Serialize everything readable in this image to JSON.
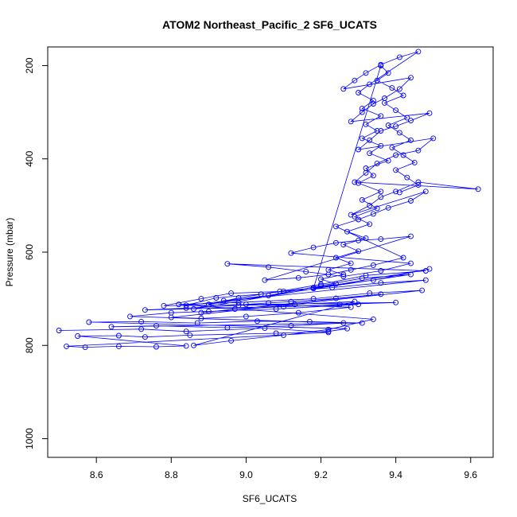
{
  "chart_data": {
    "type": "line",
    "title": "ATOM2 Northeast_Pacific_2 SF6_UCATS",
    "xlabel": "SF6_UCATS",
    "ylabel": "Pressure (mbar)",
    "xlim": [
      8.47,
      9.66
    ],
    "ylim": [
      1040,
      160
    ],
    "y_reversed": true,
    "x_ticks": [
      8.6,
      8.8,
      9.0,
      9.2,
      9.4,
      9.6
    ],
    "x_tick_labels": [
      "8.6",
      "8.8",
      "9.0",
      "9.2",
      "9.4",
      "9.6"
    ],
    "y_ticks": [
      200,
      400,
      600,
      800,
      1000
    ],
    "y_tick_labels": [
      "200",
      "400",
      "600",
      "800",
      "1000"
    ],
    "grid": false,
    "legend": "none",
    "series": [
      {
        "color": "#0000ff",
        "marker": "open-circle",
        "points": [
          [
            8.5,
            768
          ],
          [
            8.72,
            765
          ],
          [
            8.84,
            770
          ],
          [
            9.05,
            763
          ],
          [
            9.22,
            772
          ],
          [
            8.52,
            802
          ],
          [
            8.57,
            804
          ],
          [
            8.66,
            802
          ],
          [
            8.76,
            803
          ],
          [
            8.84,
            801
          ],
          [
            8.55,
            780
          ],
          [
            8.66,
            779
          ],
          [
            8.73,
            782
          ],
          [
            8.85,
            778
          ],
          [
            9.08,
            774
          ],
          [
            9.22,
            770
          ],
          [
            9.27,
            764
          ],
          [
            8.58,
            750
          ],
          [
            8.72,
            749
          ],
          [
            8.87,
            752
          ],
          [
            9.03,
            748
          ],
          [
            9.17,
            749
          ],
          [
            9.31,
            752
          ],
          [
            8.64,
            760
          ],
          [
            8.76,
            758
          ],
          [
            8.95,
            762
          ],
          [
            9.12,
            758
          ],
          [
            9.26,
            752
          ],
          [
            8.69,
            738
          ],
          [
            8.8,
            730
          ],
          [
            8.9,
            727
          ],
          [
            9.08,
            722
          ],
          [
            9.3,
            712
          ],
          [
            8.73,
            724
          ],
          [
            8.84,
            720
          ],
          [
            8.98,
            714
          ],
          [
            9.13,
            712
          ],
          [
            9.29,
            706
          ],
          [
            8.86,
            800
          ],
          [
            8.96,
            790
          ],
          [
            9.1,
            778
          ],
          [
            9.22,
            766
          ],
          [
            9.34,
            744
          ],
          [
            8.82,
            712
          ],
          [
            8.98,
            708
          ],
          [
            9.18,
            700
          ],
          [
            9.33,
            688
          ],
          [
            9.47,
            682
          ],
          [
            8.8,
            740
          ],
          [
            8.88,
            742
          ],
          [
            9.0,
            738
          ],
          [
            9.14,
            730
          ],
          [
            9.28,
            718
          ],
          [
            9.0,
            712
          ],
          [
            9.06,
            709
          ],
          [
            9.12,
            706
          ],
          [
            9.24,
            699
          ],
          [
            9.36,
            690
          ],
          [
            8.88,
            730
          ],
          [
            8.97,
            722
          ],
          [
            9.1,
            717
          ],
          [
            9.25,
            712
          ],
          [
            9.4,
            708
          ],
          [
            8.78,
            715
          ],
          [
            8.88,
            700
          ],
          [
            8.96,
            688
          ],
          [
            9.1,
            684
          ],
          [
            9.23,
            676
          ],
          [
            9.36,
            666
          ],
          [
            9.48,
            660
          ],
          [
            8.84,
            714
          ],
          [
            8.92,
            698
          ],
          [
            9.04,
            690
          ],
          [
            9.18,
            676
          ],
          [
            9.34,
            660
          ],
          [
            9.49,
            636
          ],
          [
            8.86,
            722
          ],
          [
            8.94,
            704
          ],
          [
            9.06,
            693
          ],
          [
            9.2,
            672
          ],
          [
            9.31,
            656
          ],
          [
            9.44,
            648
          ],
          [
            8.9,
            712
          ],
          [
            8.98,
            698
          ],
          [
            9.09,
            684
          ],
          [
            9.2,
            669
          ],
          [
            9.32,
            650
          ],
          [
            9.48,
            640
          ],
          [
            8.95,
            625
          ],
          [
            9.06,
            632
          ],
          [
            9.16,
            642
          ],
          [
            9.26,
            652
          ],
          [
            9.36,
            640
          ],
          [
            9.44,
            624
          ],
          [
            9.12,
            602
          ],
          [
            9.18,
            590
          ],
          [
            9.24,
            580
          ],
          [
            9.3,
            575
          ],
          [
            9.36,
            572
          ],
          [
            9.44,
            566
          ],
          [
            9.05,
            660
          ],
          [
            9.14,
            655
          ],
          [
            9.22,
            648
          ],
          [
            9.28,
            638
          ],
          [
            9.34,
            628
          ],
          [
            9.42,
            612
          ],
          [
            9.24,
            545
          ],
          [
            9.3,
            530
          ],
          [
            9.34,
            518
          ],
          [
            9.38,
            505
          ],
          [
            9.44,
            490
          ],
          [
            9.48,
            470
          ],
          [
            9.28,
            520
          ],
          [
            9.33,
            500
          ],
          [
            9.36,
            482
          ],
          [
            9.4,
            470
          ],
          [
            9.46,
            450
          ],
          [
            9.62,
            465
          ],
          [
            9.29,
            450
          ],
          [
            9.32,
            430
          ],
          [
            9.35,
            410
          ],
          [
            9.4,
            392
          ],
          [
            9.46,
            382
          ],
          [
            9.5,
            356
          ],
          [
            9.3,
            380
          ],
          [
            9.33,
            360
          ],
          [
            9.36,
            340
          ],
          [
            9.4,
            330
          ],
          [
            9.44,
            318
          ],
          [
            9.49,
            302
          ],
          [
            9.28,
            320
          ],
          [
            9.31,
            300
          ],
          [
            9.34,
            282
          ],
          [
            9.37,
            270
          ],
          [
            9.41,
            250
          ],
          [
            9.44,
            226
          ],
          [
            9.26,
            250
          ],
          [
            9.29,
            232
          ],
          [
            9.32,
            216
          ],
          [
            9.36,
            198
          ],
          [
            9.41,
            182
          ],
          [
            9.46,
            170
          ],
          [
            9.33,
            240
          ],
          [
            9.3,
            258
          ],
          [
            9.34,
            275
          ],
          [
            9.31,
            292
          ],
          [
            9.36,
            308
          ],
          [
            9.32,
            326
          ],
          [
            9.35,
            340
          ],
          [
            9.31,
            356
          ],
          [
            9.36,
            372
          ],
          [
            9.33,
            388
          ],
          [
            9.38,
            404
          ],
          [
            9.32,
            420
          ],
          [
            9.34,
            436
          ],
          [
            9.3,
            452
          ],
          [
            9.36,
            470
          ],
          [
            9.31,
            488
          ],
          [
            9.35,
            506
          ],
          [
            9.29,
            524
          ],
          [
            9.33,
            540
          ],
          [
            9.27,
            556
          ],
          [
            9.32,
            570
          ],
          [
            9.26,
            584
          ],
          [
            9.3,
            598
          ],
          [
            9.24,
            612
          ],
          [
            9.28,
            624
          ],
          [
            9.22,
            638
          ],
          [
            9.26,
            648
          ],
          [
            9.2,
            658
          ],
          [
            9.24,
            668
          ],
          [
            9.18,
            678
          ],
          [
            9.36,
            200
          ],
          [
            9.38,
            216
          ],
          [
            9.35,
            232
          ],
          [
            9.39,
            248
          ],
          [
            9.42,
            264
          ],
          [
            9.37,
            280
          ],
          [
            9.4,
            296
          ],
          [
            9.43,
            312
          ],
          [
            9.38,
            328
          ],
          [
            9.41,
            344
          ],
          [
            9.44,
            360
          ],
          [
            9.39,
            376
          ],
          [
            9.42,
            392
          ],
          [
            9.45,
            408
          ],
          [
            9.4,
            424
          ],
          [
            9.43,
            440
          ],
          [
            9.46,
            456
          ],
          [
            9.41,
            472
          ]
        ]
      }
    ]
  }
}
